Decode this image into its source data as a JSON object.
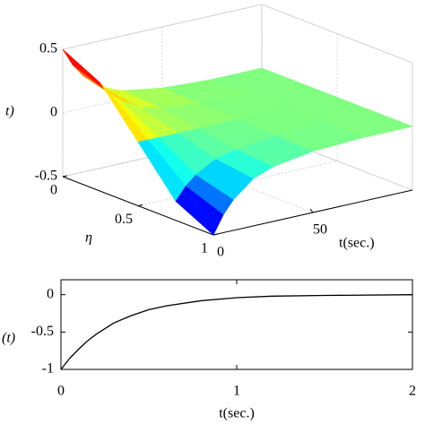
{
  "chart_data": [
    {
      "type": "surface",
      "colormap": "jet",
      "zlabel": "t)",
      "etalabel": "η",
      "tlabel": "t(sec.)",
      "eta": [
        0,
        0.25,
        0.5,
        0.75,
        1
      ],
      "t": [
        0,
        5,
        10,
        20,
        30,
        50,
        75,
        100
      ],
      "z": [
        [
          0.5,
          0.36,
          0.26,
          0.13,
          0.07,
          0.02,
          0,
          0
        ],
        [
          0.35,
          0.25,
          0.18,
          0.09,
          0.05,
          0.01,
          0,
          0
        ],
        [
          0,
          0,
          0,
          0,
          0,
          0,
          0,
          0
        ],
        [
          -0.35,
          -0.25,
          -0.18,
          -0.09,
          -0.05,
          -0.01,
          0,
          0
        ],
        [
          -0.5,
          -0.36,
          -0.26,
          -0.13,
          -0.07,
          -0.02,
          0,
          0
        ]
      ],
      "zlim": [
        -0.5,
        0.5
      ],
      "zticks": [
        -0.5,
        0,
        0.5
      ],
      "etalim": [
        0,
        1
      ],
      "etaticks": [
        0,
        0.5,
        1
      ],
      "tlim": [
        0,
        100
      ],
      "tticks": [
        0,
        50
      ],
      "grid": true
    },
    {
      "type": "line",
      "xlabel": "t(sec.)",
      "ylabel": "(t)",
      "x": [
        0,
        0.05,
        0.1,
        0.15,
        0.2,
        0.3,
        0.4,
        0.5,
        0.6,
        0.8,
        1,
        1.2,
        1.5,
        2
      ],
      "series": [
        {
          "color": "#000000",
          "values": [
            -1,
            -0.85,
            -0.73,
            -0.62,
            -0.53,
            -0.38,
            -0.28,
            -0.2,
            -0.15,
            -0.08,
            -0.04,
            -0.02,
            -0.01,
            0
          ]
        }
      ],
      "xlim": [
        0,
        2
      ],
      "xticks": [
        0,
        1,
        2
      ],
      "ylim": [
        -1,
        0.2
      ],
      "yticks": [
        0,
        -0.5,
        -1
      ]
    }
  ]
}
